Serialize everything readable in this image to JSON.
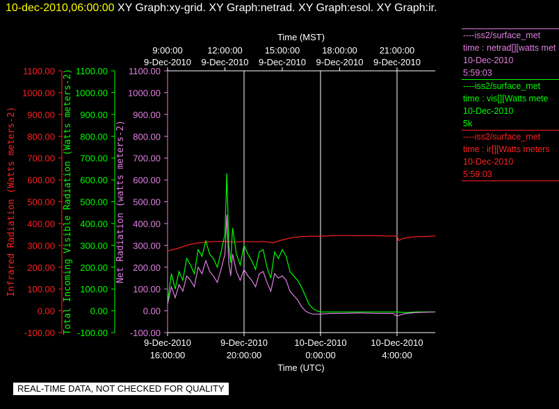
{
  "header": {
    "timestamp": "10-dec-2010,06:00:00",
    "graphs": "XY Graph:xy-grid.  XY Graph:netrad.  XY Graph:esol.  XY Graph:ir."
  },
  "legend": [
    {
      "name": "----iss2/surface_met",
      "line2": "time : netrad[][watts met",
      "line3": "10-Dec-2010",
      "line4": "5:59:03",
      "color": "#e080e0"
    },
    {
      "name": "----iss2/surface_met",
      "line2": "time : vis[][Watts mete",
      "line3": "10-Dec-2010",
      "line4": "5k",
      "color": "#00ff00"
    },
    {
      "name": "----iss2/surface_met",
      "line2": "time : ir[][Watts meters",
      "line3": "10-Dec-2010",
      "line4": "5:59:03",
      "color": "#ff2020"
    }
  ],
  "footer": "REAL-TIME DATA, NOT CHECKED FOR QUALITY",
  "chart_data": {
    "type": "line",
    "top_axis": {
      "title": "Time (MST)",
      "ticks": [
        {
          "line1": "9:00:00",
          "line2": "9-Dec-2010"
        },
        {
          "line1": "12:00:00",
          "line2": "9-Dec-2010"
        },
        {
          "line1": "15:00:00",
          "line2": "9-Dec-2010"
        },
        {
          "line1": "18:00:00",
          "line2": "9-Dec-2010"
        },
        {
          "line1": "21:00:00",
          "line2": "9-Dec-2010"
        }
      ],
      "tick_hours": [
        9,
        12,
        15,
        18,
        21
      ]
    },
    "bottom_axis": {
      "title": "Time (UTC)",
      "ticks": [
        {
          "line1": "9-Dec-2010",
          "line2": "16:00:00"
        },
        {
          "line1": "9-Dec-2010",
          "line2": "20:00:00"
        },
        {
          "line1": "10-Dec-2010",
          "line2": "0:00:00"
        },
        {
          "line1": "10-Dec-2010",
          "line2": "4:00:00"
        }
      ],
      "tick_hours": [
        16,
        20,
        24,
        28
      ]
    },
    "x_range_utc_hours": [
      16,
      30
    ],
    "vertical_grid_utc_hours": [
      20,
      24,
      28
    ],
    "y_axes": [
      {
        "label": "Infrared Radiation (Watts meters-2)",
        "color": "#ff2020"
      },
      {
        "label": "Total Incoming Visible Radiation (Watts meters-2)",
        "color": "#00ff00"
      },
      {
        "label": "Net Radiation (watts meters-2)",
        "color": "#e080e0"
      }
    ],
    "y_ticks": [
      "1100.00",
      "1000.00",
      "900.00",
      "800.00",
      "700.00",
      "600.00",
      "500.00",
      "400.00",
      "300.00",
      "200.00",
      "100.00",
      "0.00",
      "-100.00"
    ],
    "ylim": [
      -100,
      1100
    ],
    "series": [
      {
        "key": "ir",
        "color": "#ff2020",
        "x": [
          16.0,
          16.5,
          17.0,
          17.5,
          18.0,
          18.5,
          19.0,
          19.5,
          20.0,
          20.5,
          21.0,
          21.5,
          22.0,
          22.5,
          23.0,
          23.5,
          24.0,
          24.5,
          25.0,
          25.5,
          26.0,
          26.5,
          27.0,
          27.5,
          28.0,
          28.1,
          28.3,
          28.6,
          29.0,
          29.5,
          30.0
        ],
        "y": [
          275,
          285,
          300,
          310,
          315,
          318,
          318,
          315,
          318,
          316,
          318,
          312,
          325,
          335,
          340,
          342,
          342,
          344,
          345,
          345,
          344,
          345,
          344,
          343,
          342,
          322,
          332,
          336,
          340,
          341,
          343
        ]
      },
      {
        "key": "vis",
        "color": "#00ff00",
        "x": [
          16.0,
          16.2,
          16.4,
          16.6,
          16.8,
          17.0,
          17.2,
          17.4,
          17.6,
          17.8,
          18.0,
          18.2,
          18.4,
          18.6,
          18.8,
          19.0,
          19.1,
          19.2,
          19.3,
          19.4,
          19.6,
          19.8,
          20.0,
          20.2,
          20.4,
          20.6,
          20.8,
          21.0,
          21.2,
          21.4,
          21.6,
          21.8,
          22.0,
          22.2,
          22.4,
          22.6,
          22.8,
          23.0,
          23.2,
          23.4,
          23.6,
          23.8,
          24.0,
          24.5,
          25.0,
          26.0,
          27.0,
          28.0,
          28.5,
          29.0,
          30.0
        ],
        "y": [
          40,
          170,
          100,
          180,
          140,
          240,
          210,
          170,
          280,
          250,
          320,
          260,
          240,
          200,
          270,
          350,
          630,
          300,
          220,
          380,
          260,
          210,
          300,
          260,
          230,
          190,
          270,
          280,
          200,
          150,
          270,
          240,
          280,
          250,
          180,
          160,
          140,
          110,
          70,
          30,
          10,
          0,
          -5,
          -5,
          -5,
          -5,
          -5,
          -5,
          -8,
          -5,
          -5
        ]
      },
      {
        "key": "net",
        "color": "#e080e0",
        "x": [
          16.0,
          16.2,
          16.4,
          16.6,
          16.8,
          17.0,
          17.2,
          17.4,
          17.6,
          17.8,
          18.0,
          18.2,
          18.4,
          18.6,
          18.8,
          19.0,
          19.1,
          19.2,
          19.3,
          19.4,
          19.6,
          19.8,
          20.0,
          20.2,
          20.4,
          20.6,
          20.8,
          21.0,
          21.2,
          21.4,
          21.6,
          21.8,
          22.0,
          22.2,
          22.4,
          22.6,
          22.8,
          23.0,
          23.2,
          23.4,
          23.6,
          23.8,
          24.0,
          24.5,
          25.0,
          26.0,
          27.0,
          27.8,
          28.0,
          28.2,
          28.5,
          29.0,
          30.0
        ],
        "y": [
          30,
          110,
          60,
          120,
          90,
          160,
          140,
          110,
          200,
          170,
          230,
          180,
          160,
          130,
          190,
          260,
          440,
          220,
          160,
          260,
          180,
          140,
          190,
          160,
          140,
          110,
          170,
          180,
          130,
          90,
          170,
          150,
          160,
          140,
          90,
          70,
          50,
          20,
          0,
          -10,
          -15,
          -15,
          -15,
          -12,
          -12,
          -10,
          -12,
          -12,
          -25,
          -18,
          -12,
          -8,
          -5
        ]
      }
    ]
  }
}
